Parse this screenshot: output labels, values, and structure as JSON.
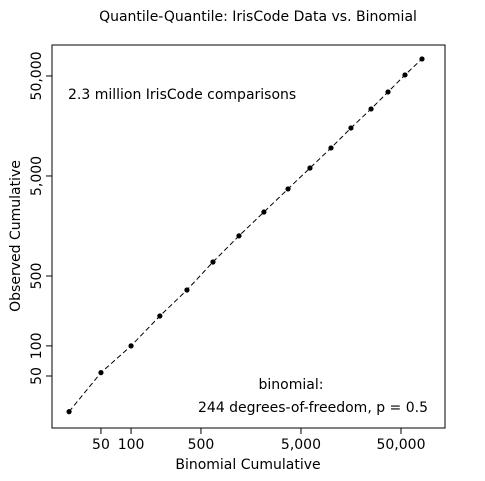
{
  "chart_data": {
    "type": "scatter",
    "title": "Quantile-Quantile: IrisCode Data vs. Binomial",
    "x_label": "Binomial Cumulative",
    "y_label": "Observed Cumulative",
    "annotations": [
      "2.3 million IrisCode comparisons",
      "binomial:",
      "244 degrees-of-freedom,  p = 0.5"
    ],
    "log_x": true,
    "log_y": true,
    "xlim": [
      16.2,
      137700
    ],
    "ylim": [
      15.1,
      102000
    ],
    "xticks": [
      50,
      100,
      500,
      {
        "value": 5000,
        "label": "5,000"
      },
      {
        "value": 50000,
        "label": "50,000"
      }
    ],
    "yticks": [
      50,
      100,
      500,
      {
        "value": 5000,
        "label": "5,000"
      },
      {
        "value": 50000,
        "label": "50,000"
      }
    ],
    "series": [
      {
        "color": "#000000",
        "x": [
          24,
          50,
          100,
          194,
          362,
          659,
          1200,
          2130,
          3710,
          6150,
          9980,
          15800,
          25100,
          37100,
          54800,
          81100
        ],
        "values": [
          22,
          54,
          100,
          199,
          362,
          690,
          1260,
          2180,
          3710,
          6010,
          9530,
          15100,
          23400,
          34600,
          51200,
          74000
        ]
      }
    ]
  }
}
